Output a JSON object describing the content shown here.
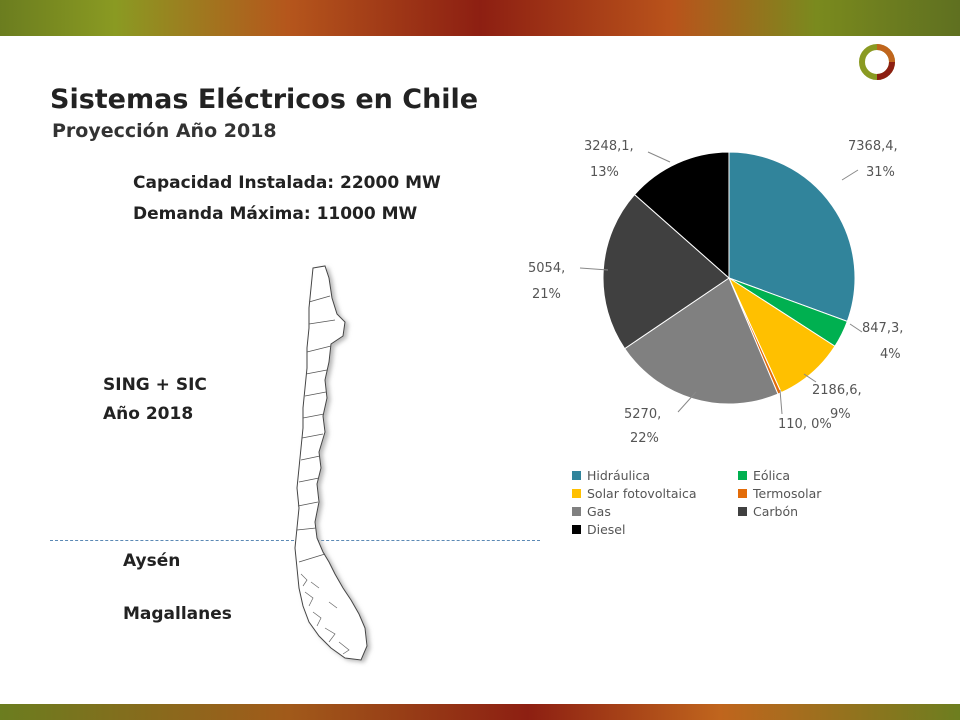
{
  "slide": {
    "title": "Sistemas Eléctricos en Chile",
    "subtitle": "Proyección Año 2018",
    "capacity": "Capacidad Instalada: 22000 MW",
    "demand": "Demanda Máxima: 11000 MW",
    "region_line1": "SING + SIC",
    "region_line2": "Año 2018",
    "region_aysen": "Aysén",
    "region_magallanes": "Magallanes"
  },
  "chart_data": {
    "type": "pie",
    "legend_position": "bottom",
    "series": [
      {
        "name": "Hidráulica",
        "value": 7368.4,
        "label": "7368,4,",
        "pct": "31%",
        "color": "#31849b"
      },
      {
        "name": "Eólica",
        "value": 847.3,
        "label": "847,3,",
        "pct": "4%",
        "color": "#00b050"
      },
      {
        "name": "Solar fotovoltaica",
        "value": 2186.6,
        "label": "2186,6,",
        "pct": "9%",
        "color": "#ffc000"
      },
      {
        "name": "Termosolar",
        "value": 110,
        "label": "110, 0%",
        "pct": "",
        "color": "#e36c09"
      },
      {
        "name": "Gas",
        "value": 5270,
        "label": "5270,",
        "pct": "22%",
        "color": "#808080"
      },
      {
        "name": "Carbón",
        "value": 5054,
        "label": "5054,",
        "pct": "21%",
        "color": "#404040"
      },
      {
        "name": "Diesel",
        "value": 3248.1,
        "label": "3248,1,",
        "pct": "13%",
        "color": "#000000"
      }
    ]
  }
}
